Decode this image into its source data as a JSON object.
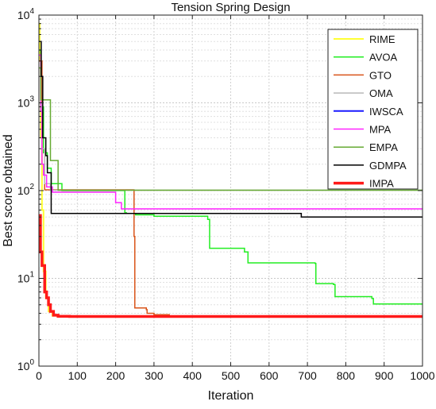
{
  "chart_data": {
    "type": "line",
    "title": "Tension Spring Design",
    "xlabel": "Iteration",
    "ylabel": "Best score obtained",
    "xlim": [
      0,
      1000
    ],
    "ylim": [
      1,
      10000
    ],
    "y_scale": "log",
    "grid": true,
    "legend_position": "top-right",
    "x_ticks": [
      "0",
      "100",
      "200",
      "300",
      "400",
      "500",
      "600",
      "700",
      "800",
      "900",
      "1000"
    ],
    "y_ticks": [
      {
        "value": 1,
        "base": "10",
        "exp": "0"
      },
      {
        "value": 10,
        "base": "10",
        "exp": "1"
      },
      {
        "value": 100,
        "base": "10",
        "exp": "2"
      },
      {
        "value": 1000,
        "base": "10",
        "exp": "3"
      },
      {
        "value": 10000,
        "base": "10",
        "exp": "4"
      }
    ],
    "series": [
      {
        "name": "RIME",
        "color": "#ffff33",
        "width": 2,
        "points": [
          [
            0,
            8000
          ],
          [
            2,
            3000
          ],
          [
            5,
            400
          ],
          [
            8,
            60
          ],
          [
            12,
            12
          ],
          [
            18,
            6
          ],
          [
            25,
            4.2
          ],
          [
            35,
            3.75
          ],
          [
            60,
            3.68
          ],
          [
            1000,
            3.66
          ]
        ]
      },
      {
        "name": "AVOA",
        "color": "#22ee22",
        "width": 1.5,
        "points": [
          [
            0,
            4000
          ],
          [
            5,
            900
          ],
          [
            12,
            270
          ],
          [
            22,
            180
          ],
          [
            32,
            120
          ],
          [
            60,
            100
          ],
          [
            218,
            100
          ],
          [
            224,
            56
          ],
          [
            228,
            55
          ],
          [
            252,
            53
          ],
          [
            300,
            51
          ],
          [
            440,
            47
          ],
          [
            445,
            22
          ],
          [
            536,
            20
          ],
          [
            545,
            15
          ],
          [
            720,
            14.8
          ],
          [
            722,
            8.7
          ],
          [
            768,
            8.5
          ],
          [
            772,
            6.2
          ],
          [
            868,
            5.9
          ],
          [
            872,
            5.1
          ],
          [
            1000,
            5.0
          ]
        ]
      },
      {
        "name": "GTO",
        "color": "#d9541a",
        "width": 1.5,
        "points": [
          [
            0,
            3000
          ],
          [
            8,
            300
          ],
          [
            15,
            102
          ],
          [
            245,
            102
          ],
          [
            248,
            30
          ],
          [
            250,
            4.6
          ],
          [
            280,
            4.4
          ],
          [
            282,
            4.0
          ],
          [
            300,
            3.85
          ],
          [
            340,
            3.72
          ],
          [
            1000,
            3.66
          ]
        ]
      },
      {
        "name": "OMA",
        "color": "#b8b8b8",
        "width": 1.5,
        "points": [
          [
            0,
            1000
          ],
          [
            8,
            300
          ],
          [
            15,
            120
          ],
          [
            30,
            101
          ],
          [
            1000,
            101
          ]
        ]
      },
      {
        "name": "IWSCA",
        "color": "#1a1aff",
        "width": 2,
        "points": [
          [
            0,
            11300
          ],
          [
            1000,
            11300
          ]
        ]
      },
      {
        "name": "MPA",
        "color": "#ff22ff",
        "width": 1.5,
        "points": [
          [
            0,
            3500
          ],
          [
            5,
            800
          ],
          [
            8,
            200
          ],
          [
            12,
            150
          ],
          [
            20,
            110
          ],
          [
            35,
            96
          ],
          [
            195,
            96
          ],
          [
            200,
            73
          ],
          [
            215,
            62
          ],
          [
            1000,
            62
          ]
        ]
      },
      {
        "name": "EMPA",
        "color": "#66aa33",
        "width": 1.5,
        "points": [
          [
            0,
            2500
          ],
          [
            5,
            1080
          ],
          [
            25,
            1080
          ],
          [
            30,
            220
          ],
          [
            50,
            101
          ],
          [
            1000,
            99
          ]
        ]
      },
      {
        "name": "GDMPA",
        "color": "#000000",
        "width": 1.5,
        "points": [
          [
            0,
            5000
          ],
          [
            6,
            2000
          ],
          [
            10,
            400
          ],
          [
            18,
            250
          ],
          [
            22,
            160
          ],
          [
            32,
            55
          ],
          [
            680,
            55
          ],
          [
            684,
            50
          ],
          [
            1000,
            50
          ]
        ]
      },
      {
        "name": "IMPA",
        "color": "#ff1a1a",
        "width": 3.5,
        "points": [
          [
            0,
            52
          ],
          [
            4,
            20
          ],
          [
            8,
            14
          ],
          [
            15,
            7
          ],
          [
            20,
            6
          ],
          [
            25,
            5
          ],
          [
            30,
            4.2
          ],
          [
            38,
            3.8
          ],
          [
            50,
            3.7
          ],
          [
            80,
            3.68
          ],
          [
            1000,
            3.66
          ]
        ]
      }
    ]
  }
}
